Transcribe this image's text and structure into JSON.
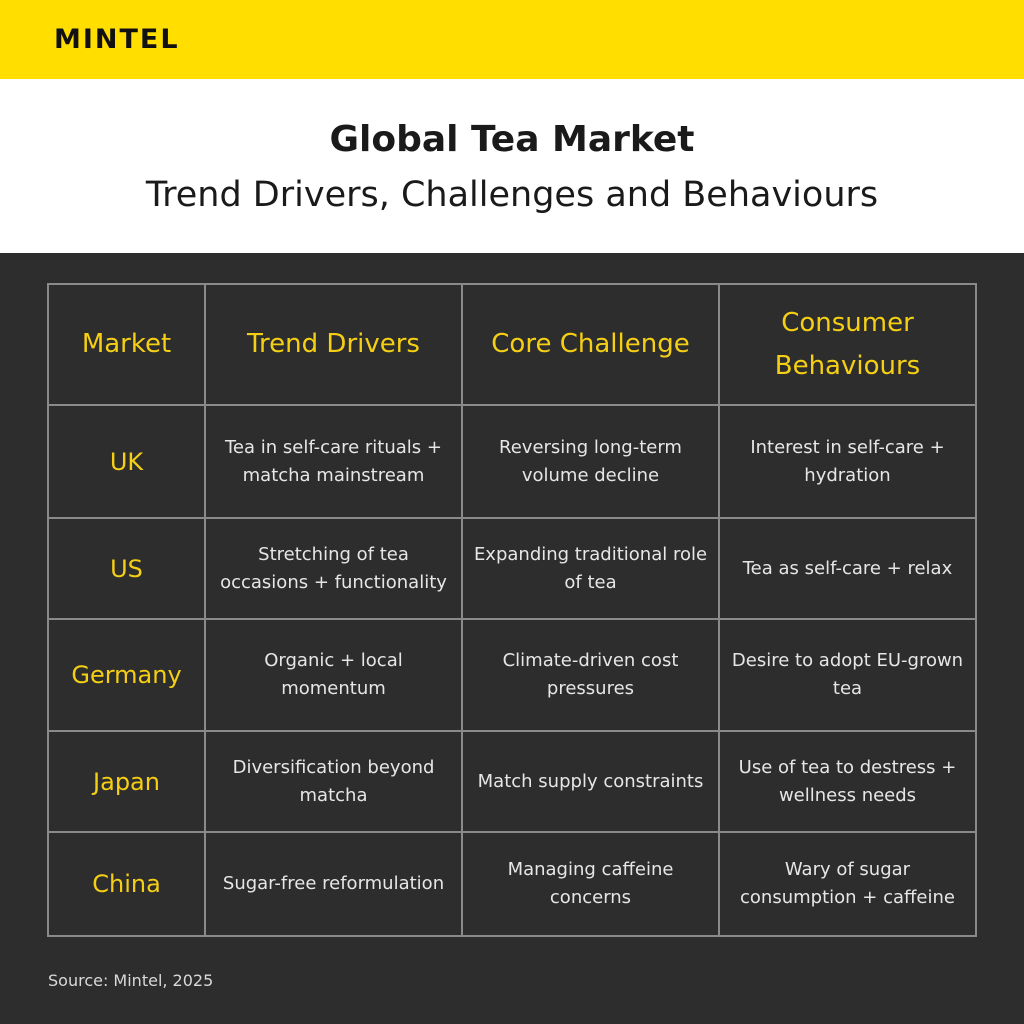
{
  "brand": {
    "logo_text": "MINTEL"
  },
  "header": {
    "title": "Global Tea Market",
    "subtitle": "Trend Drivers, Challenges and Behaviours"
  },
  "table": {
    "columns": [
      "Market",
      "Trend Drivers",
      "Core Challenge",
      "Consumer Behaviours"
    ],
    "rows": [
      {
        "market": "UK",
        "drivers": "Tea in self-care rituals + matcha mainstream",
        "challenge": "Reversing long-term volume decline",
        "behaviours": "Interest in self-care + hydration"
      },
      {
        "market": "US",
        "drivers": "Stretching of tea occasions + functionality",
        "challenge": "Expanding traditional role of tea",
        "behaviours": "Tea as self-care + relax"
      },
      {
        "market": "Germany",
        "drivers": "Organic + local momentum",
        "challenge": "Climate-driven cost pressures",
        "behaviours": "Desire to adopt EU-grown tea"
      },
      {
        "market": "Japan",
        "drivers": "Diversification beyond matcha",
        "challenge": "Match supply constraints",
        "behaviours": "Use of tea to destress + wellness needs"
      },
      {
        "market": "China",
        "drivers": "Sugar-free reformulation",
        "challenge": "Managing caffeine concerns",
        "behaviours": "Wary of sugar consumption + caffeine"
      }
    ]
  },
  "footer": {
    "source": "Source: Mintel, 2025"
  },
  "colors": {
    "brand_yellow": "#ffde00",
    "background": "#2d2d2d",
    "accent_text": "#f5cf14"
  }
}
